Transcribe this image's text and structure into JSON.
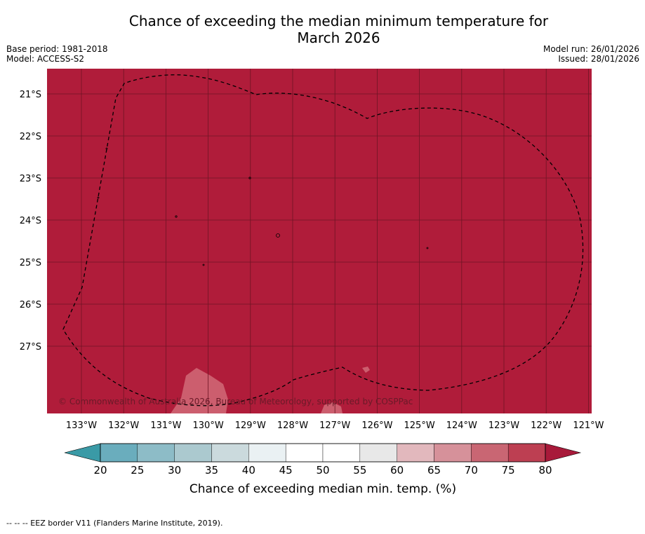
{
  "title_line1": "Chance of exceeding the median minimum temperature for",
  "title_line2": "March 2026",
  "meta_left": [
    "Base period: 1981-2018",
    "Model: ACCESS-S2"
  ],
  "meta_right": [
    "Model run: 26/01/2026",
    "Issued: 28/01/2026"
  ],
  "copyright": "© Commonwealth of Australia 2026, Bureau of Meteorology, supported by COSPPac",
  "footnote": "--  --  -- EEZ border V11 (Flanders Marine Institute, 2019).",
  "map": {
    "lat_labels": [
      "21°S",
      "22°S",
      "23°S",
      "24°S",
      "25°S",
      "26°S",
      "27°S"
    ],
    "lon_labels": [
      "133°W",
      "132°W",
      "131°W",
      "130°W",
      "129°W",
      "128°W",
      "127°W",
      "126°W",
      "125°W",
      "124°W",
      "123°W",
      "122°W",
      "121°W"
    ],
    "fill_color": "#b01c3a",
    "grid_color": "#6e1424"
  },
  "colorbar": {
    "ticks": [
      "20",
      "25",
      "30",
      "35",
      "40",
      "45",
      "50",
      "55",
      "60",
      "65",
      "70",
      "75",
      "80"
    ],
    "colors": [
      "#6aadbd",
      "#8dbcc7",
      "#abc9cf",
      "#cbdadd",
      "#eaf1f3",
      "#ffffff",
      "#ffffff",
      "#e8e8e8",
      "#e2b8bd",
      "#d6919a",
      "#c96673",
      "#bd3f52"
    ],
    "under_color": "#3a9aa6",
    "over_color": "#a81a3a",
    "label": "Chance of exceeding median min. temp. (%)"
  }
}
